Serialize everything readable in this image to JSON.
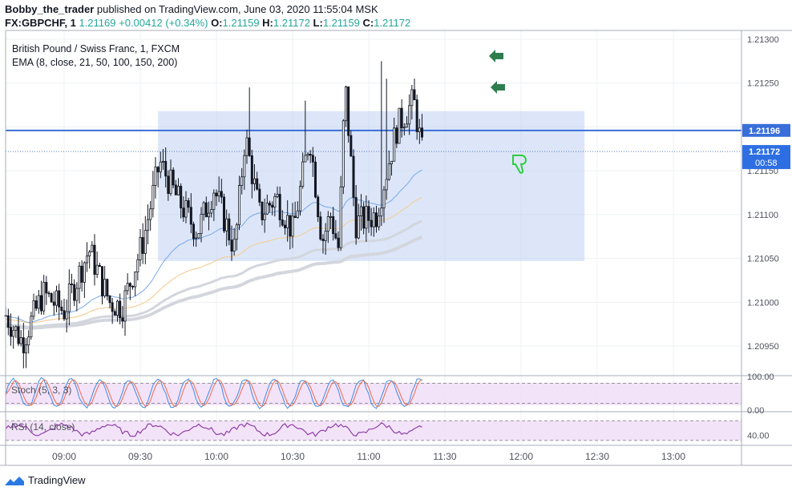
{
  "header": {
    "publisher": "Bobby_the_trader",
    "published_text": " published on TradingView.com, June 03, 2020 11:55:04 MSK",
    "symbol_line_prefix": "FX:GBPCHF, 1",
    "last": "1.21169",
    "change": "+0.00412 (+0.34%)",
    "o_label": "O:",
    "o": "1.21159",
    "h_label": "H:",
    "h": "1.21172",
    "l_label": "L:",
    "l": "1.21159",
    "c_label": "C:",
    "c": "1.21172"
  },
  "legend": {
    "title": "British Pound / Swiss Franc, 1, FXCM",
    "ema": "EMA (8, close, 21, 50, 100, 150, 200)"
  },
  "footer": {
    "brand": "TradingView"
  },
  "colors": {
    "candle_up": "#ffffff",
    "candle_down": "#131722",
    "candle_outline": "#131722",
    "box_fill": "#bfd1f3",
    "hline": "#3a6fd9",
    "ema_fast": "#7aa9e8",
    "ema_mid": "#f4cf9b",
    "ema_slow": "#d3d6dd",
    "stoch_k": "#3d8ee3",
    "stoch_d": "#ef6a4d",
    "rsi": "#8e3fa5",
    "indicator_bg": "#f0dcf7",
    "arrow_up": "#2e7d4f",
    "thumb": "#2ecc40"
  },
  "chart_data": {
    "type": "candlestick",
    "symbol": "FX:GBPCHF",
    "timeframe": "1",
    "price_axis": {
      "ticks": [
        "1.21300",
        "1.21250",
        "1.21200",
        "1.21150",
        "1.21100",
        "1.21050",
        "1.21000",
        "1.20950"
      ],
      "range": [
        1.2092,
        1.2131
      ]
    },
    "time_axis": {
      "ticks": [
        "09:00",
        "09:30",
        "10:00",
        "10:30",
        "11:00",
        "11:30",
        "12:00",
        "12:30",
        "13:00"
      ]
    },
    "horizontal_line": {
      "value": 1.21196,
      "label": "1.21196"
    },
    "last_price_label": "1.21172",
    "countdown": "00:58",
    "range_box": {
      "x_start": "09:37",
      "x_end": "12:25",
      "y_top": 1.21218,
      "y_bottom": 1.21047
    },
    "annotations": [
      "arrow-up-icon",
      "arrow-up-icon",
      "thumb-down-icon"
    ],
    "stoch": {
      "label": "Stoch (5, 3, 3)",
      "ticks": [
        "100.00",
        "0.00"
      ],
      "range": [
        0,
        100
      ],
      "bands": [
        80,
        20
      ]
    },
    "rsi": {
      "label": "RSI (14, close)",
      "ticks": [
        "40.00"
      ],
      "range": [
        20,
        85
      ],
      "bands": [
        70,
        30
      ]
    }
  }
}
